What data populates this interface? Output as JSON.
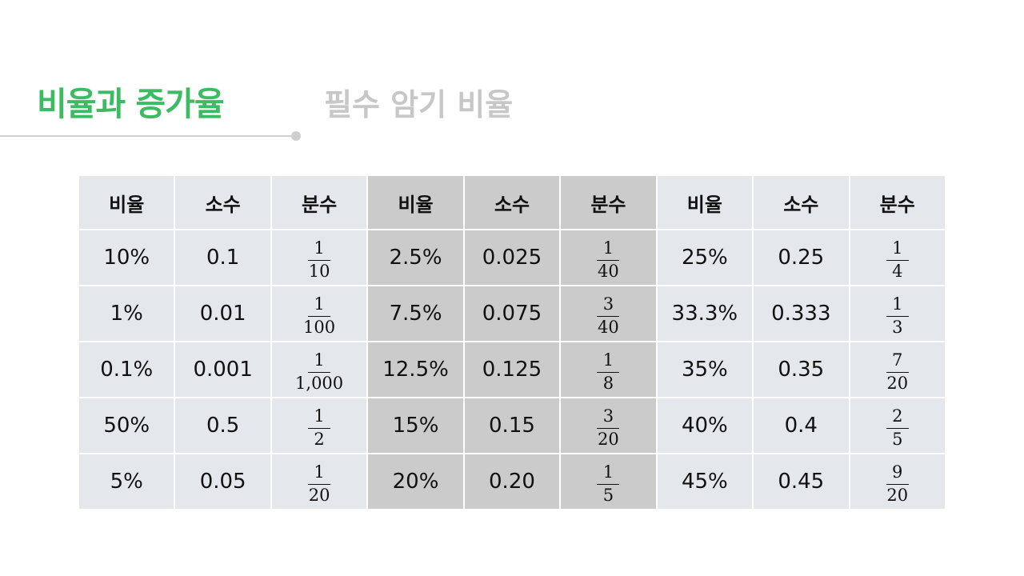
{
  "header": {
    "title": "비율과 증가율",
    "subtitle": "필수 암기 비율"
  },
  "colors": {
    "accent": "#3dbb62",
    "subtitle": "#c7c7c7",
    "cell_light": "#e4e7eb",
    "cell_dark": "#cbcbcb"
  },
  "table": {
    "headers": [
      "비율",
      "소수",
      "분수",
      "비율",
      "소수",
      "분수",
      "비율",
      "소수",
      "분수"
    ],
    "rows": [
      [
        {
          "pct": "10%",
          "dec": "0.1",
          "num": "1",
          "den": "10"
        },
        {
          "pct": "2.5%",
          "dec": "0.025",
          "num": "1",
          "den": "40"
        },
        {
          "pct": "25%",
          "dec": "0.25",
          "num": "1",
          "den": "4"
        }
      ],
      [
        {
          "pct": "1%",
          "dec": "0.01",
          "num": "1",
          "den": "100"
        },
        {
          "pct": "7.5%",
          "dec": "0.075",
          "num": "3",
          "den": "40"
        },
        {
          "pct": "33.3%",
          "dec": "0.333",
          "num": "1",
          "den": "3"
        }
      ],
      [
        {
          "pct": "0.1%",
          "dec": "0.001",
          "num": "1",
          "den": "1,000"
        },
        {
          "pct": "12.5%",
          "dec": "0.125",
          "num": "1",
          "den": "8"
        },
        {
          "pct": "35%",
          "dec": "0.35",
          "num": "7",
          "den": "20"
        }
      ],
      [
        {
          "pct": "50%",
          "dec": "0.5",
          "num": "1",
          "den": "2"
        },
        {
          "pct": "15%",
          "dec": "0.15",
          "num": "3",
          "den": "20"
        },
        {
          "pct": "40%",
          "dec": "0.4",
          "num": "2",
          "den": "5"
        }
      ],
      [
        {
          "pct": "5%",
          "dec": "0.05",
          "num": "1",
          "den": "20"
        },
        {
          "pct": "20%",
          "dec": "0.20",
          "num": "1",
          "den": "5"
        },
        {
          "pct": "45%",
          "dec": "0.45",
          "num": "9",
          "den": "20"
        }
      ]
    ]
  }
}
